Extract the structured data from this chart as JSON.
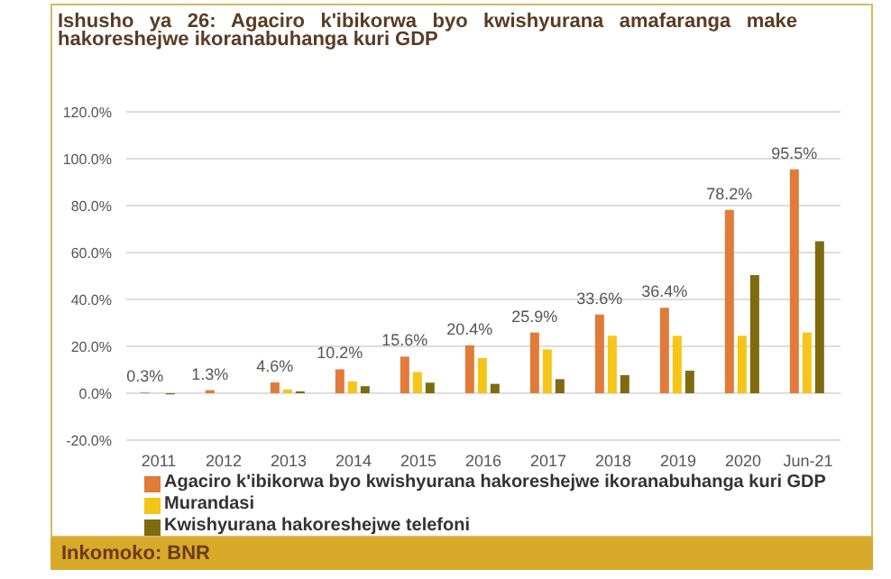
{
  "chart_data": {
    "type": "bar",
    "title": "Ishusho ya 26: Agaciro k'ibikorwa byo kwishyurana amafaranga make hakoreshejwe ikoranabuhanga kuri GDP",
    "categories": [
      "2011",
      "2012",
      "2013",
      "2014",
      "2015",
      "2016",
      "2017",
      "2018",
      "2019",
      "2020",
      "Jun-21"
    ],
    "series": [
      {
        "name": "Agaciro k'ibikorwa byo kwishyurana hakoreshejwe ikoranabuhanga kuri GDP",
        "color": "#e07b39",
        "values": [
          0.3,
          1.3,
          4.6,
          10.2,
          15.6,
          20.4,
          25.9,
          33.6,
          36.4,
          78.2,
          95.5
        ],
        "value_labels": [
          "0.3%",
          "1.3%",
          "4.6%",
          "10.2%",
          "15.6%",
          "20.4%",
          "25.9%",
          "33.6%",
          "36.4%",
          "78.2%",
          "95.5%"
        ]
      },
      {
        "name": "Murandasi",
        "color": "#f5c518",
        "values": [
          0,
          0,
          1.6,
          5,
          9,
          15,
          18.7,
          24.5,
          24.5,
          24.5,
          25.9
        ]
      },
      {
        "name": "Kwishyurana hakoreshejwe telefoni",
        "color": "#7f6a10",
        "values": [
          -0.5,
          0,
          0.8,
          3,
          4.5,
          4,
          6,
          7.7,
          9.6,
          50.4,
          64.8
        ]
      }
    ],
    "ylim": [
      -20,
      120
    ],
    "yticks": [
      {
        "value": -20,
        "label": "-20.0%"
      },
      {
        "value": 0,
        "label": "0.0%"
      },
      {
        "value": 20,
        "label": "20.0%"
      },
      {
        "value": 40,
        "label": "40.0%"
      },
      {
        "value": 60,
        "label": "60.0%"
      },
      {
        "value": 80,
        "label": "80.0%"
      },
      {
        "value": 100,
        "label": "100.0%"
      },
      {
        "value": 120,
        "label": "120.0%"
      }
    ],
    "grid": "y",
    "legend": "bottom",
    "annotations": [
      "Inkomoko: BNR"
    ]
  }
}
